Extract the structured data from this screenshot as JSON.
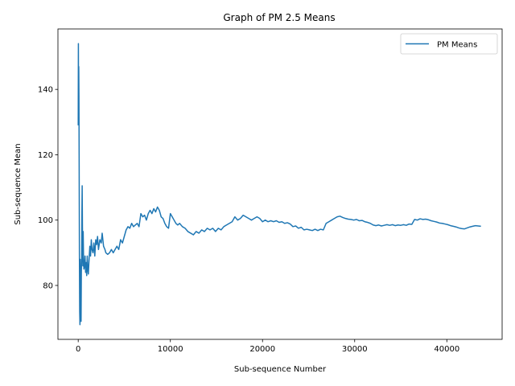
{
  "chart_data": {
    "type": "line",
    "title": "Graph of PM 2.5 Means",
    "xlabel": "Sub-sequence Number",
    "ylabel": "Sub-sequence Mean",
    "xlim": [
      -2200,
      46000
    ],
    "ylim": [
      63.5,
      158.5
    ],
    "xticks": [
      0,
      10000,
      20000,
      30000,
      40000
    ],
    "yticks": [
      80,
      100,
      120,
      140
    ],
    "grid": false,
    "legend_position": "top-right",
    "series": [
      {
        "name": "PM Means",
        "color": "#1f77b4",
        "points": [
          [
            0,
            129
          ],
          [
            20,
            154
          ],
          [
            40,
            132
          ],
          [
            60,
            147
          ],
          [
            80,
            138
          ],
          [
            100,
            120
          ],
          [
            130,
            90
          ],
          [
            160,
            72
          ],
          [
            190,
            68
          ],
          [
            220,
            88
          ],
          [
            250,
            70
          ],
          [
            280,
            86
          ],
          [
            310,
            69
          ],
          [
            340,
            84
          ],
          [
            370,
            88
          ],
          [
            400,
            102
          ],
          [
            430,
            110.5
          ],
          [
            460,
            98
          ],
          [
            500,
            86
          ],
          [
            540,
            96.5
          ],
          [
            580,
            88
          ],
          [
            620,
            85
          ],
          [
            680,
            86
          ],
          [
            740,
            89
          ],
          [
            800,
            84
          ],
          [
            860,
            87
          ],
          [
            920,
            83
          ],
          [
            980,
            89
          ],
          [
            1040,
            85
          ],
          [
            1100,
            83.5
          ],
          [
            1180,
            88
          ],
          [
            1260,
            92
          ],
          [
            1340,
            89
          ],
          [
            1420,
            94
          ],
          [
            1500,
            91
          ],
          [
            1600,
            90
          ],
          [
            1700,
            93
          ],
          [
            1800,
            89
          ],
          [
            1900,
            94
          ],
          [
            2000,
            92.5
          ],
          [
            2100,
            95
          ],
          [
            2200,
            91
          ],
          [
            2350,
            94
          ],
          [
            2500,
            93
          ],
          [
            2600,
            96
          ],
          [
            2750,
            92
          ],
          [
            2900,
            91
          ],
          [
            3000,
            90
          ],
          [
            3200,
            89.5
          ],
          [
            3400,
            90
          ],
          [
            3600,
            91
          ],
          [
            3800,
            90
          ],
          [
            4000,
            91
          ],
          [
            4200,
            92
          ],
          [
            4400,
            91
          ],
          [
            4600,
            94
          ],
          [
            4800,
            93
          ],
          [
            5000,
            95
          ],
          [
            5200,
            97
          ],
          [
            5400,
            98
          ],
          [
            5600,
            97.5
          ],
          [
            5800,
            99
          ],
          [
            6000,
            98
          ],
          [
            6200,
            98.5
          ],
          [
            6400,
            99
          ],
          [
            6600,
            98
          ],
          [
            6800,
            102
          ],
          [
            7000,
            101
          ],
          [
            7200,
            101.5
          ],
          [
            7400,
            100
          ],
          [
            7600,
            102
          ],
          [
            7800,
            103
          ],
          [
            8000,
            102
          ],
          [
            8200,
            103.5
          ],
          [
            8400,
            102.5
          ],
          [
            8600,
            104
          ],
          [
            8800,
            103
          ],
          [
            9000,
            101
          ],
          [
            9200,
            100.5
          ],
          [
            9400,
            99
          ],
          [
            9600,
            98
          ],
          [
            9800,
            97.5
          ],
          [
            10000,
            102
          ],
          [
            10200,
            101
          ],
          [
            10400,
            100
          ],
          [
            10600,
            99
          ],
          [
            10800,
            98.5
          ],
          [
            11000,
            99
          ],
          [
            11300,
            98
          ],
          [
            11600,
            97.5
          ],
          [
            11900,
            96.5
          ],
          [
            12200,
            96
          ],
          [
            12500,
            95.5
          ],
          [
            12800,
            96.5
          ],
          [
            13100,
            96
          ],
          [
            13400,
            97
          ],
          [
            13700,
            96.5
          ],
          [
            14000,
            97.5
          ],
          [
            14300,
            97
          ],
          [
            14600,
            97.5
          ],
          [
            14900,
            96.5
          ],
          [
            15200,
            97.5
          ],
          [
            15500,
            97
          ],
          [
            15800,
            98
          ],
          [
            16100,
            98.5
          ],
          [
            16400,
            99
          ],
          [
            16700,
            99.5
          ],
          [
            17000,
            101
          ],
          [
            17300,
            100
          ],
          [
            17600,
            100.5
          ],
          [
            17900,
            101.5
          ],
          [
            18200,
            101
          ],
          [
            18500,
            100.5
          ],
          [
            18800,
            100
          ],
          [
            19100,
            100.5
          ],
          [
            19400,
            101
          ],
          [
            19700,
            100.5
          ],
          [
            20000,
            99.5
          ],
          [
            20300,
            100
          ],
          [
            20600,
            99.5
          ],
          [
            20900,
            99.8
          ],
          [
            21200,
            99.5
          ],
          [
            21500,
            99.8
          ],
          [
            21800,
            99.3
          ],
          [
            22100,
            99.5
          ],
          [
            22400,
            99
          ],
          [
            22700,
            99.2
          ],
          [
            23000,
            98.8
          ],
          [
            23300,
            98
          ],
          [
            23600,
            98.2
          ],
          [
            23900,
            97.5
          ],
          [
            24200,
            97.8
          ],
          [
            24500,
            97
          ],
          [
            24800,
            97.2
          ],
          [
            25100,
            97
          ],
          [
            25400,
            96.8
          ],
          [
            25700,
            97.2
          ],
          [
            26000,
            96.8
          ],
          [
            26300,
            97.2
          ],
          [
            26600,
            97
          ],
          [
            26900,
            99
          ],
          [
            27200,
            99.5
          ],
          [
            27500,
            100
          ],
          [
            27800,
            100.5
          ],
          [
            28100,
            101
          ],
          [
            28400,
            101.2
          ],
          [
            28700,
            100.8
          ],
          [
            29000,
            100.5
          ],
          [
            29300,
            100.3
          ],
          [
            29600,
            100.2
          ],
          [
            29900,
            100
          ],
          [
            30200,
            100.2
          ],
          [
            30500,
            99.8
          ],
          [
            30800,
            99.9
          ],
          [
            31100,
            99.5
          ],
          [
            31400,
            99.3
          ],
          [
            31700,
            99
          ],
          [
            32000,
            98.5
          ],
          [
            32300,
            98.3
          ],
          [
            32600,
            98.5
          ],
          [
            32900,
            98.2
          ],
          [
            33200,
            98.4
          ],
          [
            33500,
            98.6
          ],
          [
            33800,
            98.4
          ],
          [
            34100,
            98.6
          ],
          [
            34400,
            98.3
          ],
          [
            34700,
            98.5
          ],
          [
            35000,
            98.4
          ],
          [
            35300,
            98.6
          ],
          [
            35600,
            98.4
          ],
          [
            35900,
            98.8
          ],
          [
            36200,
            98.7
          ],
          [
            36500,
            100.2
          ],
          [
            36800,
            100
          ],
          [
            37100,
            100.4
          ],
          [
            37400,
            100.2
          ],
          [
            37700,
            100.3
          ],
          [
            38000,
            100.1
          ],
          [
            38300,
            99.8
          ],
          [
            38600,
            99.6
          ],
          [
            38900,
            99.4
          ],
          [
            39200,
            99.1
          ],
          [
            39500,
            99
          ],
          [
            39800,
            98.8
          ],
          [
            40100,
            98.6
          ],
          [
            40400,
            98.3
          ],
          [
            40700,
            98.1
          ],
          [
            41000,
            97.9
          ],
          [
            41300,
            97.6
          ],
          [
            41600,
            97.4
          ],
          [
            41900,
            97.3
          ],
          [
            42200,
            97.6
          ],
          [
            42500,
            97.9
          ],
          [
            42800,
            98.1
          ],
          [
            43100,
            98.3
          ],
          [
            43400,
            98.2
          ],
          [
            43700,
            98.1
          ]
        ]
      }
    ]
  }
}
